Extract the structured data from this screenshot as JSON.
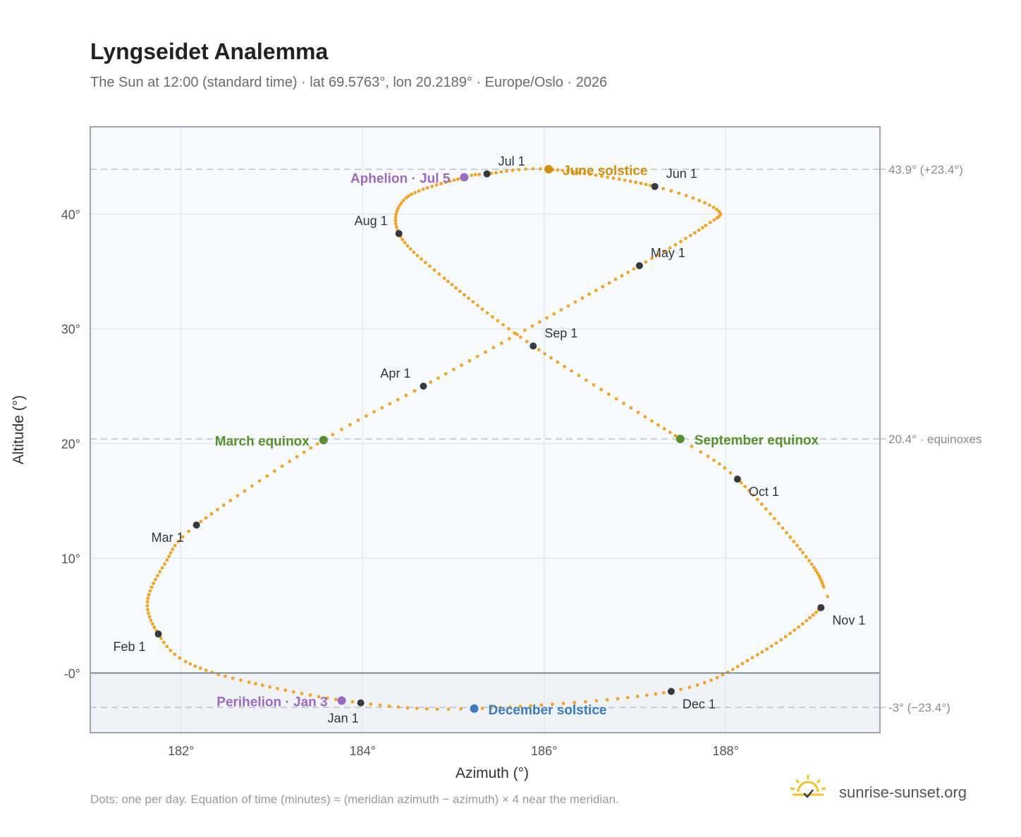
{
  "title": "Lyngseidet Analemma",
  "subtitle": "The Sun at 12:00 (standard time) · lat 69.5763°, lon 20.2189° · Europe/Oslo · 2026",
  "footnote": "Dots: one per day. Equation of time (minutes) ≈ (meridian azimuth − azimuth) × 4 near the meridian.",
  "brand": "sunrise-sunset.org",
  "colors": {
    "curve": "#f2a32a",
    "month_marker": "#333a40",
    "equinox": "#5a8f2e",
    "june_solstice": "#d1900c",
    "december_solstice": "#3a7bbf",
    "apsis": "#9b6bbf",
    "plot_background": "#f8fbfd",
    "below_horizon": "#eff3f6",
    "grid": "#e3e8ec",
    "reference_line": "#b8c2cc",
    "frame": "#9aa5b0",
    "brand_icon": "#f2c12e"
  },
  "chart_data": {
    "type": "scatter",
    "xlabel": "Azimuth (°)",
    "ylabel": "Altitude (°)",
    "xlim": [
      181.0,
      189.7
    ],
    "ylim": [
      -5.2,
      47.6
    ],
    "x_ticks": [
      182,
      184,
      186,
      188
    ],
    "x_tick_labels": [
      "182°",
      "184°",
      "186°",
      "188°"
    ],
    "y_ticks": [
      0,
      10,
      20,
      30,
      40
    ],
    "y_tick_labels": [
      "-0°",
      "10°",
      "20°",
      "30°",
      "40°"
    ],
    "grid": true,
    "horizon_altitude": 0,
    "reference_lines": [
      {
        "y": 43.9,
        "label": "43.9° (+23.4°)"
      },
      {
        "y": 20.4,
        "label": "20.4° · equinoxes"
      },
      {
        "y": -3.0,
        "label": "-3° (−23.4°)"
      }
    ],
    "month_markers": [
      {
        "label": "Jan 1",
        "x": 183.98,
        "y": -2.6
      },
      {
        "label": "Feb 1",
        "x": 181.75,
        "y": 3.4
      },
      {
        "label": "Mar 1",
        "x": 182.17,
        "y": 12.9
      },
      {
        "label": "Apr 1",
        "x": 184.67,
        "y": 25.0
      },
      {
        "label": "May 1",
        "x": 187.05,
        "y": 35.5
      },
      {
        "label": "Jun 1",
        "x": 187.22,
        "y": 42.4
      },
      {
        "label": "Jul 1",
        "x": 185.37,
        "y": 43.5
      },
      {
        "label": "Aug 1",
        "x": 184.4,
        "y": 38.3
      },
      {
        "label": "Sep 1",
        "x": 185.88,
        "y": 28.5
      },
      {
        "label": "Oct 1",
        "x": 188.13,
        "y": 16.9
      },
      {
        "label": "Nov 1",
        "x": 189.05,
        "y": 5.7
      },
      {
        "label": "Dec 1",
        "x": 187.4,
        "y": -1.6
      }
    ],
    "events": [
      {
        "label": "March equinox",
        "x": 183.57,
        "y": 20.3,
        "kind": "equinox"
      },
      {
        "label": "June solstice",
        "x": 186.05,
        "y": 43.9,
        "kind": "june_solstice"
      },
      {
        "label": "September equinox",
        "x": 187.5,
        "y": 20.4,
        "kind": "equinox"
      },
      {
        "label": "December solstice",
        "x": 185.23,
        "y": -3.1,
        "kind": "december_solstice"
      },
      {
        "label": "Aphelion · Jul 5",
        "x": 185.12,
        "y": 43.2,
        "kind": "apsis"
      },
      {
        "label": "Perihelion · Jan 3",
        "x": 183.77,
        "y": -2.4,
        "kind": "apsis"
      }
    ],
    "curve_keypoints": [
      {
        "day": 0,
        "x": 183.98,
        "y": -2.6
      },
      {
        "day": 14,
        "x": 182.75,
        "y": -0.8
      },
      {
        "day": 24,
        "x": 182.05,
        "y": 1.0
      },
      {
        "day": 31,
        "x": 181.75,
        "y": 3.4
      },
      {
        "day": 40,
        "x": 181.63,
        "y": 6.2
      },
      {
        "day": 50,
        "x": 181.82,
        "y": 9.5
      },
      {
        "day": 59,
        "x": 182.17,
        "y": 12.9
      },
      {
        "day": 78,
        "x": 183.57,
        "y": 20.3
      },
      {
        "day": 90,
        "x": 184.67,
        "y": 25.0
      },
      {
        "day": 105,
        "x": 185.95,
        "y": 30.6
      },
      {
        "day": 120,
        "x": 187.05,
        "y": 35.5
      },
      {
        "day": 133,
        "x": 187.78,
        "y": 39.0
      },
      {
        "day": 141,
        "x": 187.9,
        "y": 40.4
      },
      {
        "day": 151,
        "x": 187.22,
        "y": 42.4
      },
      {
        "day": 171,
        "x": 186.05,
        "y": 43.9
      },
      {
        "day": 181,
        "x": 185.37,
        "y": 43.5
      },
      {
        "day": 185,
        "x": 185.12,
        "y": 43.2
      },
      {
        "day": 200,
        "x": 184.48,
        "y": 41.4
      },
      {
        "day": 212,
        "x": 184.4,
        "y": 38.3
      },
      {
        "day": 225,
        "x": 184.9,
        "y": 34.4
      },
      {
        "day": 243,
        "x": 185.88,
        "y": 28.5
      },
      {
        "day": 265,
        "x": 187.5,
        "y": 20.4
      },
      {
        "day": 273,
        "x": 188.13,
        "y": 16.9
      },
      {
        "day": 290,
        "x": 188.85,
        "y": 10.5
      },
      {
        "day": 302,
        "x": 189.08,
        "y": 7.5
      },
      {
        "day": 304,
        "x": 189.05,
        "y": 5.7
      },
      {
        "day": 320,
        "x": 188.35,
        "y": 1.6
      },
      {
        "day": 334,
        "x": 187.4,
        "y": -1.6
      },
      {
        "day": 354,
        "x": 185.23,
        "y": -3.1
      },
      {
        "day": 365,
        "x": 183.98,
        "y": -2.6
      }
    ]
  }
}
